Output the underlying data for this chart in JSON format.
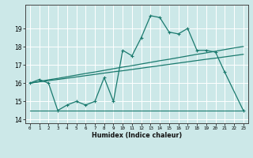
{
  "xlabel": "Humidex (Indice chaleur)",
  "x": [
    0,
    1,
    2,
    3,
    4,
    5,
    6,
    7,
    8,
    9,
    10,
    11,
    12,
    13,
    14,
    15,
    16,
    17,
    18,
    19,
    20,
    21,
    22,
    23
  ],
  "y_main": [
    16.0,
    16.2,
    16.0,
    14.5,
    14.8,
    15.0,
    14.8,
    15.0,
    16.3,
    15.0,
    17.8,
    17.5,
    18.5,
    19.7,
    19.6,
    18.8,
    18.7,
    19.0,
    17.8,
    17.8,
    17.7,
    16.6,
    null,
    14.5
  ],
  "y_min": [
    14.5,
    14.5,
    14.5,
    14.5,
    14.5,
    14.5,
    14.5,
    14.5,
    14.5,
    14.5,
    14.5,
    14.5,
    14.5,
    14.5,
    14.5,
    14.5,
    14.5,
    14.5,
    14.5,
    14.5,
    14.5,
    14.5,
    14.5,
    14.5
  ],
  "y_linear1": [
    16.0,
    16.07,
    16.14,
    16.2,
    16.27,
    16.34,
    16.41,
    16.48,
    16.55,
    16.62,
    16.68,
    16.75,
    16.82,
    16.89,
    16.96,
    17.03,
    17.1,
    17.17,
    17.24,
    17.31,
    17.37,
    17.44,
    17.51,
    17.58
  ],
  "y_linear2": [
    16.0,
    16.09,
    16.18,
    16.26,
    16.35,
    16.44,
    16.53,
    16.61,
    16.7,
    16.79,
    16.88,
    16.96,
    17.05,
    17.14,
    17.23,
    17.31,
    17.4,
    17.49,
    17.58,
    17.66,
    17.75,
    17.84,
    17.93,
    18.01
  ],
  "color": "#1a7a6e",
  "background": "#cce8e8",
  "grid_color": "#ffffff",
  "ylim": [
    13.8,
    20.3
  ],
  "yticks": [
    14,
    15,
    16,
    17,
    18,
    19
  ],
  "xticks": [
    0,
    1,
    2,
    3,
    4,
    5,
    6,
    7,
    8,
    9,
    10,
    11,
    12,
    13,
    14,
    15,
    16,
    17,
    18,
    19,
    20,
    21,
    22,
    23
  ]
}
